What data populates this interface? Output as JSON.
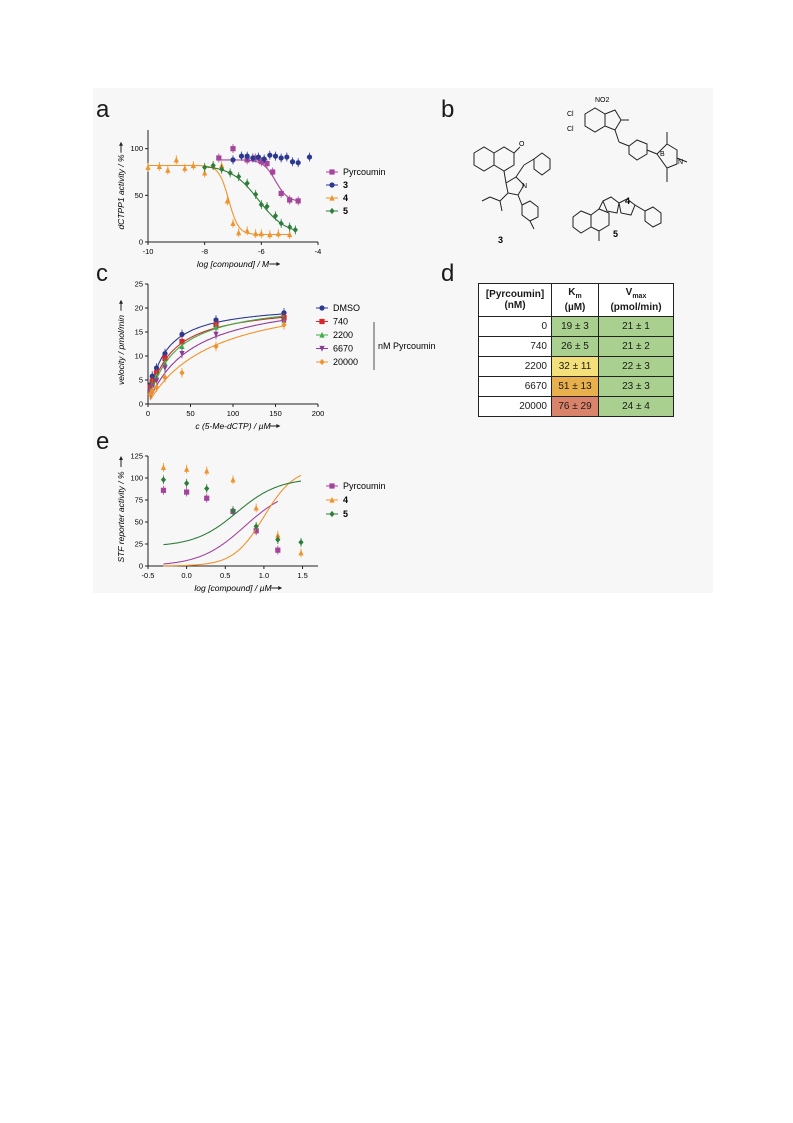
{
  "panels": {
    "a": "a",
    "b": "b",
    "c": "c",
    "d": "d",
    "e": "e"
  },
  "panel_b": {
    "compound_labels": [
      "3",
      "4",
      "5"
    ],
    "atom_labels": {
      "cl1": "Cl",
      "cl2": "Cl",
      "no2": "NO2",
      "n": "N",
      "b": "B",
      "o": "O"
    }
  },
  "table_d": {
    "headers": [
      "[Pyrcoumin] (nM)",
      "Km (µM)",
      "Vmax (pmol/min)"
    ],
    "header_lines": {
      "conc1": "[Pyrcoumin]",
      "conc2": "(nM)",
      "km1": "K",
      "km_sub": "m",
      "km2": "(µM)",
      "vmax1": "V",
      "vmax_sub": "max",
      "vmax2": "(pmol/min)"
    },
    "rows": [
      {
        "conc": "0",
        "km": "19 ± 3",
        "vmax": "21 ± 1",
        "km_color": "#a9d08e"
      },
      {
        "conc": "740",
        "km": "26 ± 5",
        "vmax": "21 ± 2",
        "km_color": "#a9d08e"
      },
      {
        "conc": "2200",
        "km": "32 ± 11",
        "vmax": "22 ± 3",
        "km_color": "#f4e07a"
      },
      {
        "conc": "6670",
        "km": "51 ± 13",
        "vmax": "23 ± 3",
        "km_color": "#e8b04c"
      },
      {
        "conc": "20000",
        "km": "76 ± 29",
        "vmax": "24 ± 4",
        "km_color": "#d9836b"
      }
    ]
  },
  "chart_data": [
    {
      "panel": "a",
      "type": "scatter",
      "xlabel": "log [compound] / M",
      "ylabel": "dCTPP1 activity / %",
      "xlim": [
        -10,
        -4
      ],
      "ylim": [
        0,
        120
      ],
      "xticks": [
        "-10",
        "-8",
        "-6",
        "-4"
      ],
      "xtick_values": [
        -10,
        -8,
        -6,
        -4
      ],
      "yticks": [
        "0",
        "50",
        "100"
      ],
      "ytick_values": [
        0,
        50,
        100
      ],
      "legend_position": "right",
      "series": [
        {
          "name": "Pyrcoumin",
          "color": "#a4449b",
          "marker": "square",
          "x": [
            -7.5,
            -7.0,
            -6.5,
            -6.2,
            -6.0,
            -5.8,
            -5.6,
            -5.3,
            -5.0,
            -4.7
          ],
          "y": [
            90,
            100,
            88,
            90,
            86,
            84,
            75,
            52,
            45,
            44
          ],
          "fit": {
            "top": 88,
            "bottom": 43,
            "logEC50": -5.5,
            "hill": 2.0
          }
        },
        {
          "name": "3",
          "color": "#2b3990",
          "marker": "circle",
          "x": [
            -7.0,
            -6.7,
            -6.5,
            -6.3,
            -6.1,
            -5.9,
            -5.7,
            -5.5,
            -5.3,
            -5.1,
            -4.9,
            -4.7,
            -4.3
          ],
          "y": [
            88,
            92,
            92,
            90,
            91,
            89,
            93,
            92,
            90,
            91,
            86,
            85,
            91
          ]
        },
        {
          "name": "4",
          "color": "#f0932b",
          "marker": "triangle",
          "x": [
            -10.0,
            -9.6,
            -9.3,
            -9.0,
            -8.7,
            -8.4,
            -8.0,
            -7.7,
            -7.4,
            -7.2,
            -7.0,
            -6.8,
            -6.5,
            -6.2,
            -6.0,
            -5.7,
            -5.4,
            -5.0
          ],
          "y": [
            80,
            81,
            77,
            88,
            79,
            82,
            74,
            82,
            82,
            44,
            20,
            10,
            12,
            9,
            9,
            8,
            9,
            8
          ],
          "fit": {
            "top": 82,
            "bottom": 8,
            "logEC50": -7.15,
            "hill": 2.5
          }
        },
        {
          "name": "5",
          "color": "#2e7d3a",
          "marker": "diamond",
          "x": [
            -8.0,
            -7.7,
            -7.4,
            -7.1,
            -6.8,
            -6.5,
            -6.2,
            -6.0,
            -5.8,
            -5.5,
            -5.3,
            -5.0,
            -4.8
          ],
          "y": [
            80,
            82,
            78,
            74,
            70,
            63,
            51,
            40,
            38,
            28,
            20,
            16,
            13
          ],
          "fit": {
            "top": 82,
            "bottom": 8,
            "logEC50": -6.1,
            "hill": 0.9
          }
        }
      ]
    },
    {
      "panel": "c",
      "type": "scatter",
      "xlabel": "c (5-Me-dCTP) / µM",
      "ylabel": "velocity / pmol/min",
      "xlim": [
        0,
        200
      ],
      "ylim": [
        0,
        25
      ],
      "xticks": [
        "0",
        "50",
        "100",
        "150",
        "200"
      ],
      "xtick_values": [
        0,
        50,
        100,
        150,
        200
      ],
      "yticks": [
        "0",
        "5",
        "10",
        "15",
        "20",
        "25"
      ],
      "ytick_values": [
        0,
        5,
        10,
        15,
        20,
        25
      ],
      "legend_position": "right",
      "legend_bracket_label": "nM Pyrcoumin",
      "series": [
        {
          "name": "DMSO",
          "color": "#2b3990",
          "marker": "circle",
          "x": [
            2.5,
            5,
            10,
            20,
            40,
            80,
            160
          ],
          "y": [
            4.0,
            5.8,
            7.5,
            10.5,
            14.5,
            17.5,
            19.0
          ],
          "fit": {
            "vmax": 21,
            "km": 19
          }
        },
        {
          "name": "740",
          "color": "#d7262c",
          "marker": "square",
          "x": [
            2.5,
            5,
            10,
            20,
            40,
            80,
            160
          ],
          "y": [
            3.5,
            4.8,
            6.5,
            9.5,
            13.0,
            16.5,
            18.0
          ],
          "fit": {
            "vmax": 21,
            "km": 26
          }
        },
        {
          "name": "2200",
          "color": "#3fae49",
          "marker": "triangle",
          "x": [
            2.5,
            5,
            10,
            20,
            40,
            80,
            160
          ],
          "y": [
            3.0,
            4.2,
            5.8,
            8.5,
            12.0,
            16.0,
            17.5
          ],
          "fit": {
            "vmax": 22,
            "km": 32
          }
        },
        {
          "name": "6670",
          "color": "#8e3b97",
          "marker": "triangle-down",
          "x": [
            2.5,
            5,
            10,
            20,
            40,
            80,
            160
          ],
          "y": [
            2.5,
            3.5,
            4.8,
            7.5,
            10.5,
            14.5,
            17.0
          ],
          "fit": {
            "vmax": 23,
            "km": 51
          }
        },
        {
          "name": "20000",
          "color": "#f0932b",
          "marker": "diamond",
          "x": [
            2.5,
            5,
            10,
            20,
            40,
            80,
            160
          ],
          "y": [
            2.0,
            2.8,
            3.5,
            5.5,
            6.5,
            12.0,
            16.5
          ],
          "fit": {
            "vmax": 24,
            "km": 76
          }
        }
      ]
    },
    {
      "panel": "e",
      "type": "scatter",
      "xlabel": "log [compound] / µM",
      "ylabel": "STF reporter activity / %",
      "xlim": [
        -0.5,
        1.7
      ],
      "ylim": [
        0,
        125
      ],
      "xticks": [
        "-0.5",
        "0.0",
        "0.5",
        "1.0",
        "1.5"
      ],
      "xtick_values": [
        -0.5,
        0,
        0.5,
        1.0,
        1.5
      ],
      "yticks": [
        "0",
        "25",
        "50",
        "75",
        "100",
        "125"
      ],
      "ytick_values": [
        0,
        25,
        50,
        75,
        100,
        125
      ],
      "legend_position": "right",
      "series": [
        {
          "name": "Pyrcoumin",
          "color": "#a4449b",
          "marker": "square",
          "x": [
            -0.3,
            0.0,
            0.26,
            0.6,
            0.9,
            1.18
          ],
          "y": [
            86,
            84,
            77,
            62,
            40,
            18
          ],
          "fit": {
            "top": 90,
            "bottom": 0,
            "logEC50": 0.75,
            "hill": -1.5
          }
        },
        {
          "name": "4",
          "color": "#f0932b",
          "marker": "triangle",
          "x": [
            -0.3,
            0.0,
            0.26,
            0.6,
            0.9,
            1.18,
            1.48
          ],
          "y": [
            112,
            110,
            108,
            98,
            66,
            35,
            15
          ],
          "fit": {
            "top": 112,
            "bottom": 0,
            "logEC50": 1.0,
            "hill": -2.2
          }
        },
        {
          "name": "5",
          "color": "#2e7d3a",
          "marker": "diamond",
          "x": [
            -0.3,
            0.0,
            0.26,
            0.6,
            0.9,
            1.18,
            1.48
          ],
          "y": [
            98,
            94,
            88,
            63,
            45,
            30,
            27
          ],
          "fit": {
            "top": 100,
            "bottom": 22,
            "logEC50": 0.65,
            "hill": -1.6
          }
        }
      ]
    }
  ]
}
